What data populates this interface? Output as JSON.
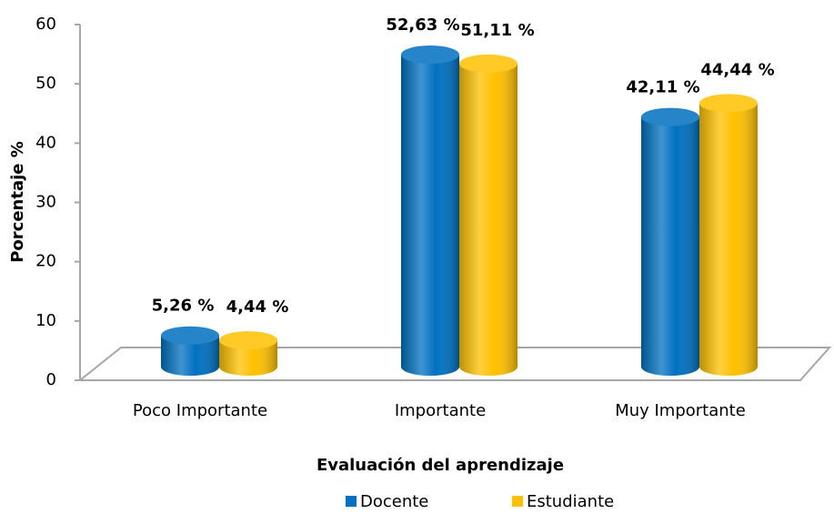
{
  "chart_data": {
    "type": "bar",
    "categories": [
      "Poco Importante",
      "Importante",
      "Muy Importante"
    ],
    "series": [
      {
        "name": "Docente",
        "color": "#0070c0",
        "values": [
          5.26,
          52.63,
          42.11
        ],
        "value_labels": [
          "5,26 %",
          "52,63 %",
          "42,11 %"
        ]
      },
      {
        "name": "Estudiante",
        "color": "#ffc000",
        "values": [
          4.44,
          51.11,
          44.44
        ],
        "value_labels": [
          "4,44 %",
          "51,11 %",
          "44,44 %"
        ]
      }
    ],
    "ylim": [
      0,
      60
    ],
    "yticks": [
      0,
      10,
      20,
      30,
      40,
      50,
      60
    ],
    "xlabel": "Evaluación del aprendizaje",
    "ylabel": "Porcentaje %",
    "legend": "bottom",
    "grid": false
  }
}
